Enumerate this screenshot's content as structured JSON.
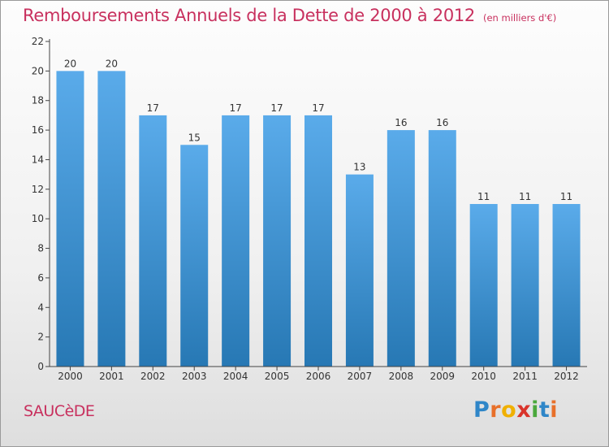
{
  "chart_data": {
    "type": "bar",
    "title": "Remboursements Annuels de la Dette de 2000 à 2012",
    "subtitle": "(en milliers d'€)",
    "categories": [
      "2000",
      "2001",
      "2002",
      "2003",
      "2004",
      "2005",
      "2006",
      "2007",
      "2008",
      "2009",
      "2010",
      "2011",
      "2012"
    ],
    "values": [
      20,
      20,
      17,
      15,
      17,
      17,
      17,
      13,
      16,
      16,
      11,
      11,
      11
    ],
    "ylim": [
      0,
      22
    ],
    "yticks": [
      0,
      2,
      4,
      6,
      8,
      10,
      12,
      14,
      16,
      18,
      20,
      22
    ],
    "grid": false,
    "bar_color_top": "#5aabea",
    "bar_color_bottom": "#2778b4"
  },
  "location": "SAUCèDE",
  "logo": {
    "letters": [
      "P",
      "r",
      "o",
      "x",
      "i",
      "t",
      "i"
    ]
  }
}
